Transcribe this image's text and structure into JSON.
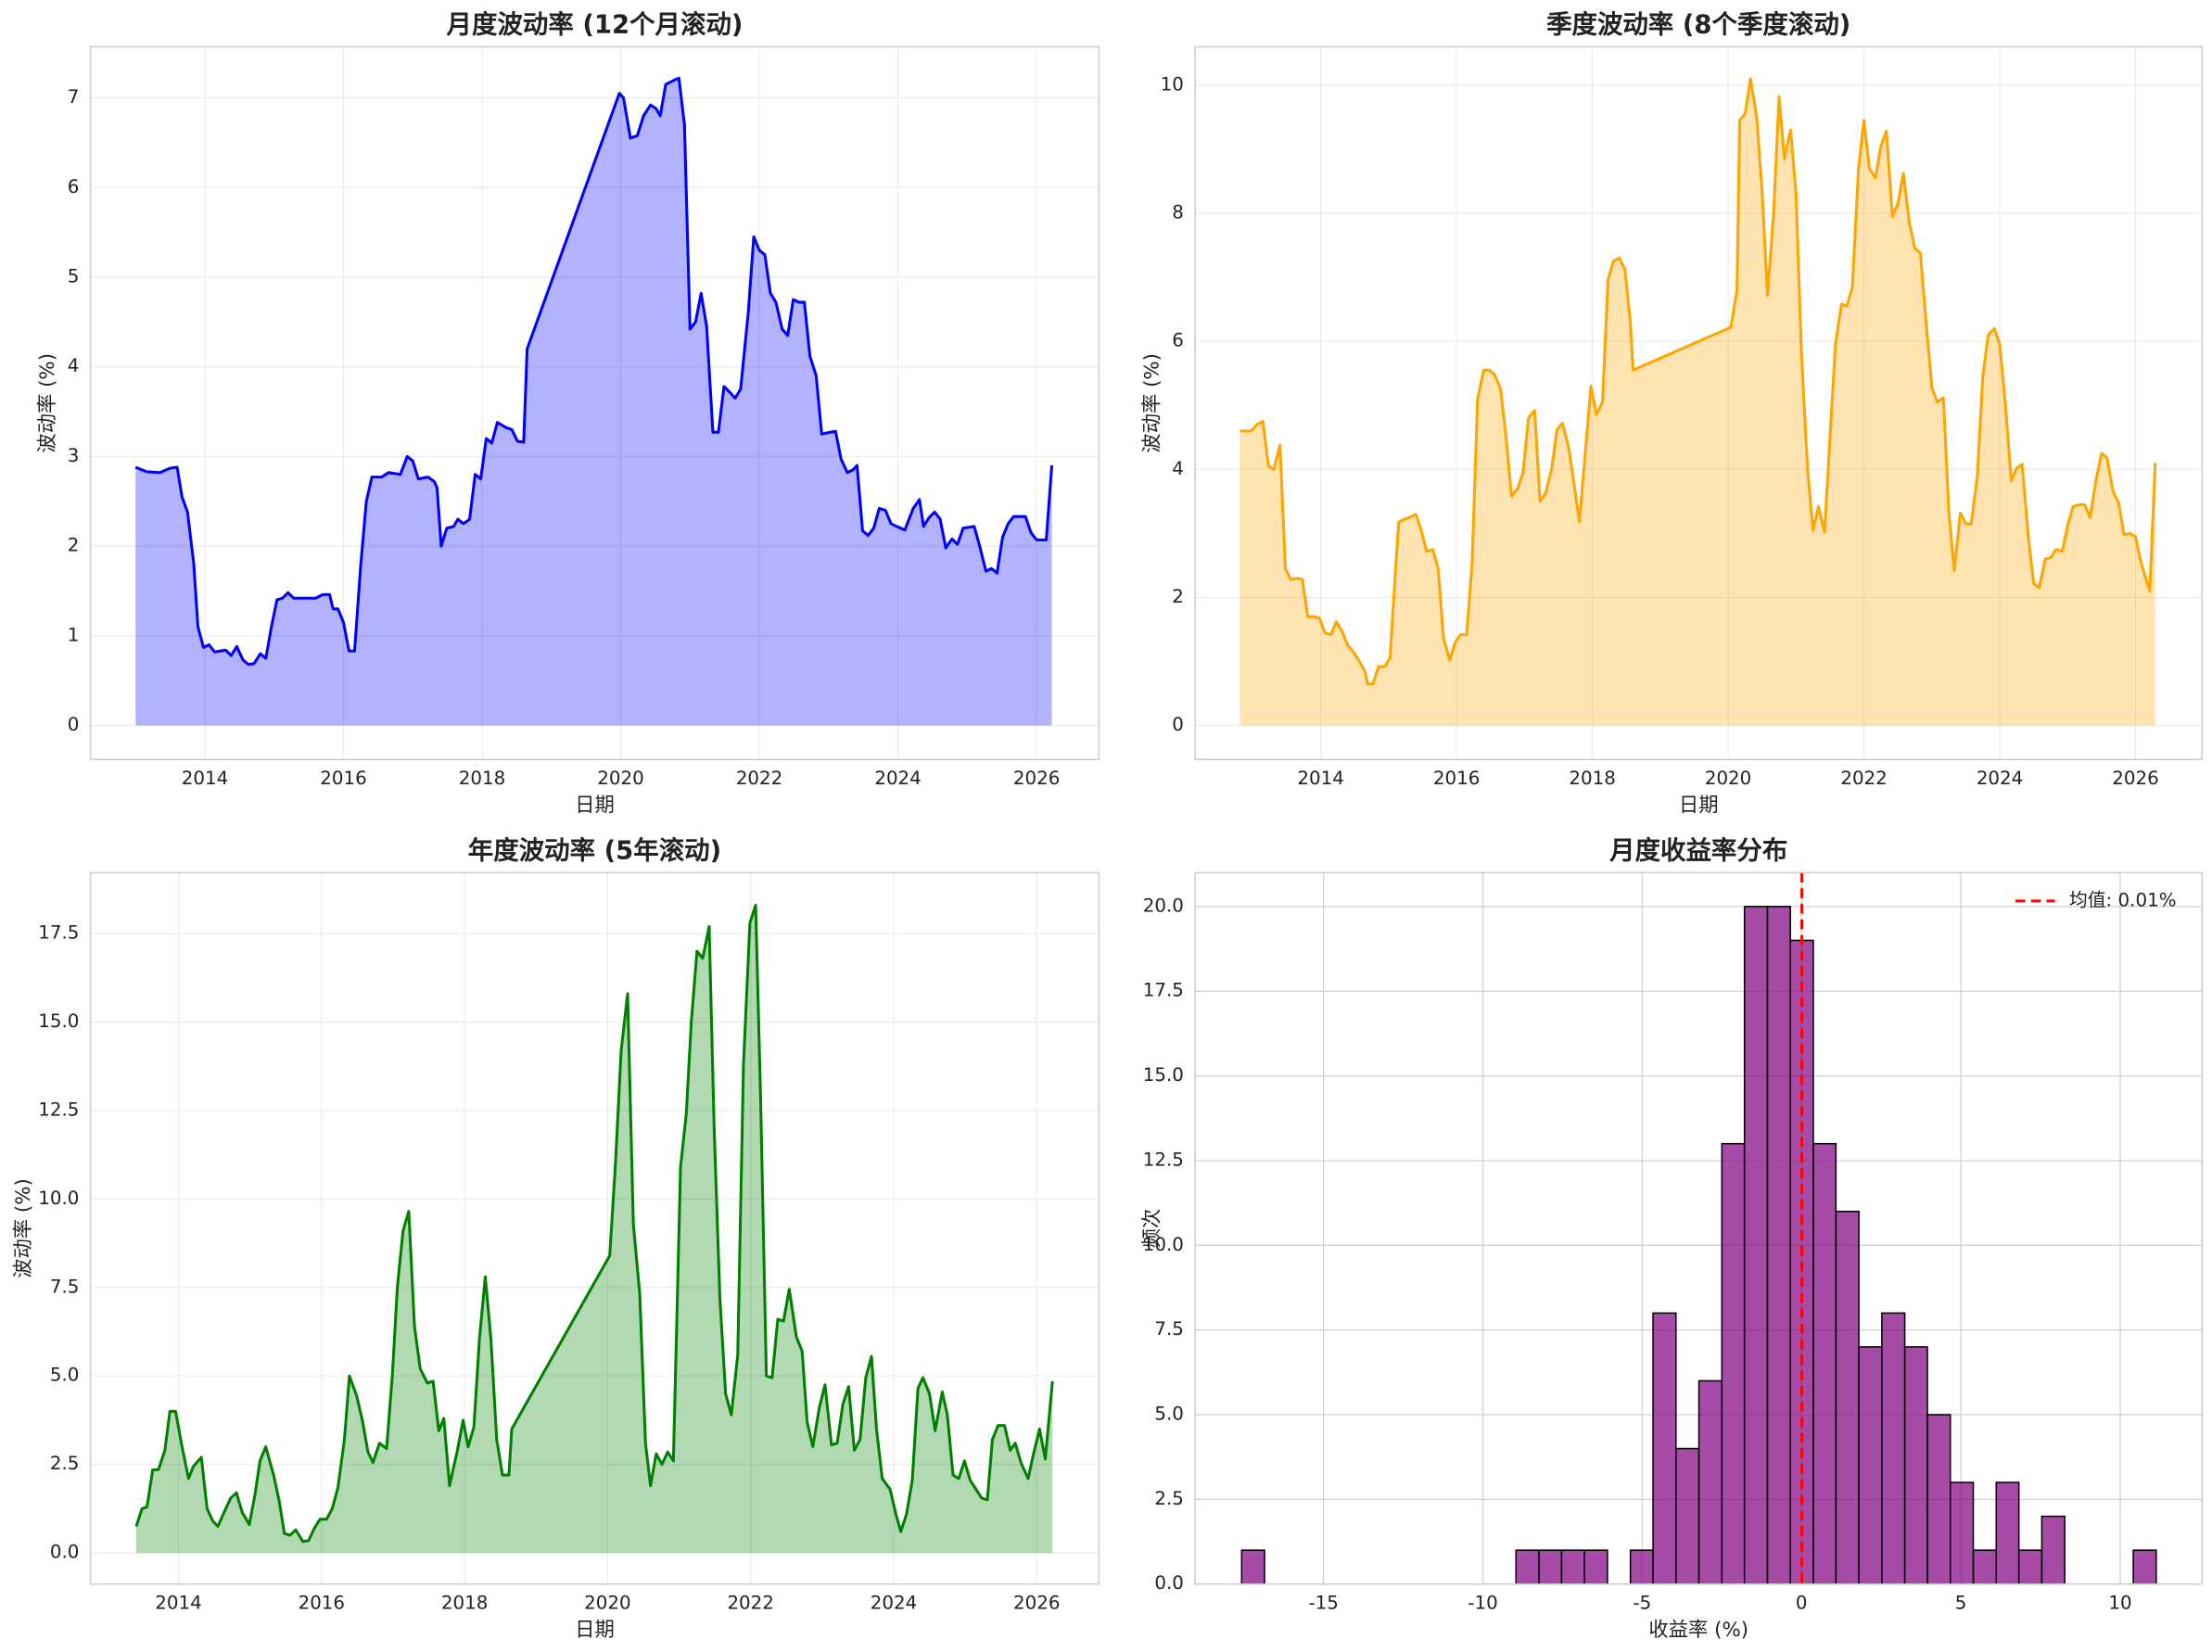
{
  "chart_data": [
    {
      "type": "area",
      "title": "月度波动率 (12个月滚动)",
      "xlabel": "日期",
      "ylabel": "波动率 (%)",
      "color": "#0000ff",
      "grid": true,
      "xlim": [
        2012.35,
        2026.9
      ],
      "ylim": [
        -0.38,
        7.57
      ],
      "xticks": [
        2014,
        2016,
        2018,
        2020,
        2022,
        2024,
        2026
      ],
      "yticks": [
        0,
        1,
        2,
        3,
        4,
        5,
        6,
        7
      ],
      "x": [
        2013.0,
        2013.16,
        2013.35,
        2013.5,
        2013.6,
        2013.67,
        2013.75,
        2013.84,
        2013.9,
        2013.98,
        2014.06,
        2014.14,
        2014.3,
        2014.38,
        2014.46,
        2014.55,
        2014.63,
        2014.71,
        2014.8,
        2014.88,
        2014.96,
        2015.04,
        2015.12,
        2015.2,
        2015.28,
        2015.6,
        2015.7,
        2015.8,
        2015.85,
        2015.92,
        2016.0,
        2016.08,
        2016.16,
        2016.25,
        2016.33,
        2016.41,
        2016.55,
        2016.65,
        2016.82,
        2016.92,
        2017.0,
        2017.08,
        2017.22,
        2017.31,
        2017.35,
        2017.41,
        2017.49,
        2017.59,
        2017.65,
        2017.73,
        2017.82,
        2017.9,
        2017.98,
        2018.06,
        2018.14,
        2018.22,
        2018.35,
        2018.43,
        2018.51,
        2018.6,
        2018.65,
        2019.98,
        2020.04,
        2020.14,
        2020.24,
        2020.33,
        2020.43,
        2020.51,
        2020.57,
        2020.65,
        2020.78,
        2020.84,
        2020.92,
        2021.0,
        2021.08,
        2021.16,
        2021.24,
        2021.33,
        2021.41,
        2021.49,
        2021.57,
        2021.65,
        2021.73,
        2021.84,
        2021.92,
        2022.0,
        2022.08,
        2022.16,
        2022.24,
        2022.33,
        2022.41,
        2022.49,
        2022.57,
        2022.65,
        2022.73,
        2022.82,
        2022.9,
        2023.02,
        2023.1,
        2023.18,
        2023.27,
        2023.35,
        2023.41,
        2023.49,
        2023.57,
        2023.65,
        2023.73,
        2023.82,
        2023.9,
        2023.98,
        2024.1,
        2024.22,
        2024.31,
        2024.37,
        2024.45,
        2024.53,
        2024.61,
        2024.69,
        2024.78,
        2024.86,
        2024.94,
        2025.1,
        2025.18,
        2025.27,
        2025.35,
        2025.43,
        2025.51,
        2025.59,
        2025.67,
        2025.84,
        2025.92,
        2026.0,
        2026.14,
        2026.22
      ],
      "values": [
        2.88,
        2.83,
        2.82,
        2.87,
        2.88,
        2.55,
        2.38,
        1.8,
        1.1,
        0.87,
        0.9,
        0.82,
        0.84,
        0.78,
        0.88,
        0.73,
        0.68,
        0.69,
        0.8,
        0.75,
        1.1,
        1.4,
        1.42,
        1.48,
        1.42,
        1.42,
        1.46,
        1.46,
        1.3,
        1.3,
        1.15,
        0.83,
        0.83,
        1.8,
        2.5,
        2.77,
        2.77,
        2.82,
        2.8,
        3.0,
        2.95,
        2.75,
        2.77,
        2.72,
        2.65,
        2.0,
        2.2,
        2.22,
        2.3,
        2.25,
        2.3,
        2.8,
        2.75,
        3.2,
        3.15,
        3.38,
        3.32,
        3.3,
        3.17,
        3.16,
        4.2,
        7.05,
        7.0,
        6.55,
        6.58,
        6.8,
        6.92,
        6.88,
        6.8,
        7.15,
        7.2,
        7.22,
        6.7,
        4.42,
        4.5,
        4.82,
        4.45,
        3.27,
        3.27,
        3.78,
        3.72,
        3.65,
        3.75,
        4.6,
        5.45,
        5.3,
        5.25,
        4.82,
        4.72,
        4.42,
        4.35,
        4.75,
        4.72,
        4.72,
        4.12,
        3.9,
        3.25,
        3.27,
        3.28,
        2.97,
        2.82,
        2.85,
        2.9,
        2.17,
        2.12,
        2.2,
        2.42,
        2.4,
        2.25,
        2.22,
        2.18,
        2.42,
        2.52,
        2.22,
        2.32,
        2.38,
        2.3,
        1.98,
        2.08,
        2.02,
        2.2,
        2.22,
        2.0,
        1.72,
        1.75,
        1.7,
        2.1,
        2.25,
        2.33,
        2.33,
        2.15,
        2.07,
        2.07,
        2.9
      ]
    },
    {
      "type": "area",
      "title": "季度波动率 (8个季度滚动)",
      "xlabel": "日期",
      "ylabel": "波动率 (%)",
      "color": "#ffa500",
      "grid": true,
      "xlim": [
        2012.15,
        2026.98
      ],
      "ylim": [
        -0.53,
        10.6
      ],
      "xticks": [
        2014,
        2016,
        2018,
        2020,
        2022,
        2024,
        2026
      ],
      "yticks": [
        0,
        2,
        4,
        6,
        8,
        10
      ],
      "x": [
        2012.81,
        2012.98,
        2013.06,
        2013.15,
        2013.23,
        2013.31,
        2013.4,
        2013.48,
        2013.56,
        2013.65,
        2013.73,
        2013.81,
        2013.9,
        2013.98,
        2014.06,
        2014.15,
        2014.23,
        2014.31,
        2014.4,
        2014.48,
        2014.56,
        2014.65,
        2014.69,
        2014.77,
        2014.85,
        2014.94,
        2015.02,
        2015.1,
        2015.15,
        2015.23,
        2015.31,
        2015.4,
        2015.48,
        2015.56,
        2015.65,
        2015.73,
        2015.81,
        2015.9,
        2015.98,
        2016.06,
        2016.15,
        2016.23,
        2016.31,
        2016.4,
        2016.48,
        2016.56,
        2016.65,
        2016.73,
        2016.81,
        2016.9,
        2016.98,
        2017.06,
        2017.15,
        2017.23,
        2017.31,
        2017.4,
        2017.48,
        2017.56,
        2017.65,
        2017.73,
        2017.81,
        2017.9,
        2017.98,
        2018.06,
        2018.15,
        2018.23,
        2018.31,
        2018.4,
        2018.48,
        2018.56,
        2018.6,
        2020.04,
        2020.13,
        2020.17,
        2020.25,
        2020.33,
        2020.42,
        2020.5,
        2020.58,
        2020.67,
        2020.75,
        2020.83,
        2020.92,
        2021.0,
        2021.08,
        2021.17,
        2021.25,
        2021.33,
        2021.42,
        2021.5,
        2021.58,
        2021.67,
        2021.75,
        2021.83,
        2021.92,
        2022.0,
        2022.08,
        2022.17,
        2022.25,
        2022.33,
        2022.42,
        2022.5,
        2022.58,
        2022.67,
        2022.75,
        2022.83,
        2022.92,
        2023.0,
        2023.08,
        2023.17,
        2023.25,
        2023.33,
        2023.42,
        2023.5,
        2023.58,
        2023.67,
        2023.75,
        2023.83,
        2023.92,
        2024.0,
        2024.08,
        2024.17,
        2024.25,
        2024.33,
        2024.42,
        2024.5,
        2024.58,
        2024.67,
        2024.75,
        2024.83,
        2024.92,
        2025.0,
        2025.08,
        2025.17,
        2025.25,
        2025.33,
        2025.42,
        2025.5,
        2025.58,
        2025.67,
        2025.75,
        2025.83,
        2025.92,
        2026.0,
        2026.08,
        2026.21,
        2026.29
      ],
      "values": [
        4.6,
        4.6,
        4.7,
        4.75,
        4.05,
        4.0,
        4.38,
        2.45,
        2.28,
        2.3,
        2.28,
        1.7,
        1.7,
        1.68,
        1.45,
        1.42,
        1.62,
        1.48,
        1.25,
        1.15,
        1.02,
        0.85,
        0.65,
        0.65,
        0.92,
        0.92,
        1.05,
        2.4,
        3.18,
        3.22,
        3.25,
        3.3,
        3.05,
        2.72,
        2.75,
        2.45,
        1.35,
        1.02,
        1.3,
        1.42,
        1.42,
        2.55,
        5.1,
        5.55,
        5.55,
        5.48,
        5.25,
        4.5,
        3.58,
        3.7,
        3.95,
        4.8,
        4.92,
        3.5,
        3.62,
        4.0,
        4.62,
        4.72,
        4.35,
        3.78,
        3.18,
        4.3,
        5.3,
        4.85,
        5.05,
        6.95,
        7.25,
        7.3,
        7.12,
        6.3,
        5.55,
        6.22,
        6.8,
        9.45,
        9.55,
        10.1,
        9.5,
        8.35,
        6.72,
        8.0,
        9.82,
        8.85,
        9.3,
        8.3,
        5.8,
        4.0,
        3.05,
        3.42,
        3.02,
        4.5,
        5.95,
        6.58,
        6.55,
        6.85,
        8.7,
        9.45,
        8.7,
        8.55,
        9.05,
        9.28,
        7.95,
        8.15,
        8.62,
        7.85,
        7.45,
        7.38,
        6.25,
        5.28,
        5.05,
        5.12,
        3.35,
        2.42,
        3.32,
        3.15,
        3.15,
        3.9,
        5.45,
        6.1,
        6.2,
        5.95,
        5.05,
        3.82,
        4.02,
        4.08,
        2.95,
        2.22,
        2.15,
        2.6,
        2.62,
        2.75,
        2.72,
        3.12,
        3.42,
        3.45,
        3.45,
        3.25,
        3.85,
        4.25,
        4.18,
        3.65,
        3.48,
        2.98,
        3.0,
        2.95,
        2.55,
        2.1,
        4.1
      ]
    },
    {
      "type": "area",
      "title": "年度波动率 (5年滚动)",
      "xlabel": "日期",
      "ylabel": "波动率 (%)",
      "color": "#008000",
      "grid": true,
      "xlim": [
        2012.77,
        2026.87
      ],
      "ylim": [
        -0.88,
        19.22
      ],
      "xticks": [
        2014,
        2016,
        2018,
        2020,
        2022,
        2024,
        2026
      ],
      "yticks": [
        {
          "value": 0,
          "label": "0.0"
        },
        2.5,
        {
          "value": 5,
          "label": "5.0"
        },
        7.5,
        {
          "value": 10,
          "label": "10.0"
        },
        12.5,
        {
          "value": 15,
          "label": "15.0"
        },
        17.5
      ],
      "x": [
        2013.41,
        2013.49,
        2013.56,
        2013.64,
        2013.72,
        2013.81,
        2013.88,
        2013.96,
        2014.04,
        2014.14,
        2014.21,
        2014.32,
        2014.4,
        2014.48,
        2014.55,
        2014.65,
        2014.73,
        2014.81,
        2014.89,
        2014.99,
        2015.07,
        2015.14,
        2015.22,
        2015.33,
        2015.41,
        2015.48,
        2015.56,
        2015.64,
        2015.74,
        2015.82,
        2015.9,
        2015.98,
        2016.07,
        2016.15,
        2016.23,
        2016.32,
        2016.39,
        2016.49,
        2016.57,
        2016.65,
        2016.72,
        2016.81,
        2016.91,
        2016.99,
        2017.06,
        2017.14,
        2017.22,
        2017.3,
        2017.38,
        2017.48,
        2017.56,
        2017.64,
        2017.71,
        2017.79,
        2017.9,
        2017.98,
        2018.05,
        2018.13,
        2018.21,
        2018.29,
        2018.37,
        2018.45,
        2018.53,
        2018.62,
        2018.66,
        2020.03,
        2020.11,
        2020.19,
        2020.28,
        2020.36,
        2020.45,
        2020.53,
        2020.6,
        2020.68,
        2020.76,
        2020.84,
        2020.92,
        2021.02,
        2021.1,
        2021.17,
        2021.25,
        2021.33,
        2021.42,
        2021.49,
        2021.57,
        2021.65,
        2021.73,
        2021.82,
        2021.9,
        2021.99,
        2022.07,
        2022.14,
        2022.22,
        2022.3,
        2022.38,
        2022.46,
        2022.54,
        2022.64,
        2022.72,
        2022.79,
        2022.87,
        2022.96,
        2023.04,
        2023.13,
        2023.21,
        2023.29,
        2023.37,
        2023.45,
        2023.53,
        2023.61,
        2023.69,
        2023.76,
        2023.84,
        2023.95,
        2024.03,
        2024.1,
        2024.18,
        2024.26,
        2024.34,
        2024.41,
        2024.5,
        2024.58,
        2024.68,
        2024.75,
        2024.83,
        2024.91,
        2024.99,
        2025.07,
        2025.15,
        2025.23,
        2025.31,
        2025.38,
        2025.46,
        2025.55,
        2025.63,
        2025.7,
        2025.78,
        2025.88,
        2025.95,
        2026.04,
        2026.12,
        2026.22
      ],
      "values": [
        0.75,
        1.25,
        1.3,
        2.35,
        2.35,
        2.9,
        4.0,
        4.0,
        3.1,
        2.1,
        2.45,
        2.7,
        1.25,
        0.9,
        0.75,
        1.2,
        1.55,
        1.7,
        1.15,
        0.8,
        1.65,
        2.6,
        3.0,
        2.2,
        1.45,
        0.55,
        0.5,
        0.65,
        0.32,
        0.35,
        0.7,
        0.95,
        0.95,
        1.25,
        1.85,
        3.2,
        5.0,
        4.45,
        3.75,
        2.85,
        2.55,
        3.1,
        2.95,
        5.0,
        7.5,
        9.1,
        9.65,
        6.4,
        5.2,
        4.8,
        4.85,
        3.45,
        3.8,
        1.9,
        2.9,
        3.75,
        3.0,
        3.55,
        6.1,
        7.8,
        6.0,
        3.2,
        2.2,
        2.2,
        3.5,
        8.4,
        11.0,
        14.2,
        15.8,
        9.3,
        7.3,
        3.1,
        1.9,
        2.8,
        2.5,
        2.85,
        2.6,
        10.9,
        12.4,
        15.0,
        17.0,
        16.8,
        17.7,
        12.0,
        7.2,
        4.5,
        3.9,
        5.6,
        13.8,
        17.8,
        18.3,
        12.8,
        5.0,
        4.95,
        6.6,
        6.55,
        7.45,
        6.1,
        5.7,
        3.7,
        3.0,
        4.1,
        4.75,
        3.05,
        3.1,
        4.2,
        4.7,
        2.9,
        3.2,
        4.95,
        5.55,
        3.5,
        2.1,
        1.8,
        1.1,
        0.6,
        1.1,
        2.05,
        4.65,
        4.95,
        4.5,
        3.45,
        4.55,
        3.9,
        2.2,
        2.1,
        2.6,
        2.05,
        1.8,
        1.55,
        1.5,
        3.2,
        3.6,
        3.6,
        2.9,
        3.1,
        2.55,
        2.1,
        2.75,
        3.5,
        2.65,
        4.85
      ]
    },
    {
      "type": "histogram",
      "title": "月度收益率分布",
      "xlabel": "收益率 (%)",
      "ylabel": "频次",
      "color": "#800080",
      "edgecolor": "#000000",
      "grid": true,
      "xlim": [
        -19.03,
        12.57
      ],
      "ylim": [
        0,
        21
      ],
      "xticks": [
        -15,
        -10,
        -5,
        0,
        5,
        10
      ],
      "yticks": [
        {
          "value": 0,
          "label": "0.0"
        },
        2.5,
        {
          "value": 5,
          "label": "5.0"
        },
        7.5,
        {
          "value": 10,
          "label": "10.0"
        },
        12.5,
        {
          "value": 15,
          "label": "15.0"
        },
        17.5,
        {
          "value": 20,
          "label": "20.0"
        }
      ],
      "bins": [
        -17.57,
        -16.85,
        -16.14,
        -15.42,
        -14.7,
        -13.98,
        -13.27,
        -12.55,
        -11.83,
        -11.11,
        -10.4,
        -9.68,
        -8.96,
        -8.24,
        -7.53,
        -6.81,
        -6.09,
        -5.37,
        -4.66,
        -3.94,
        -3.22,
        -2.5,
        -1.79,
        -1.07,
        -0.35,
        0.37,
        1.08,
        1.8,
        2.52,
        3.24,
        3.95,
        4.67,
        5.39,
        6.11,
        6.82,
        7.54,
        8.26,
        8.98,
        9.69,
        10.41,
        11.13
      ],
      "values": [
        1,
        0,
        0,
        0,
        0,
        0,
        0,
        0,
        0,
        0,
        0,
        0,
        1,
        1,
        1,
        1,
        0,
        1,
        8,
        4,
        6,
        13,
        20,
        20,
        19,
        13,
        11,
        7,
        8,
        7,
        5,
        3,
        1,
        3,
        1,
        2,
        0,
        0,
        0,
        1
      ],
      "mean": 0.01,
      "mean_color": "#ff0000",
      "mean_label": "均值: 0.01%",
      "legend": "upper right"
    }
  ]
}
